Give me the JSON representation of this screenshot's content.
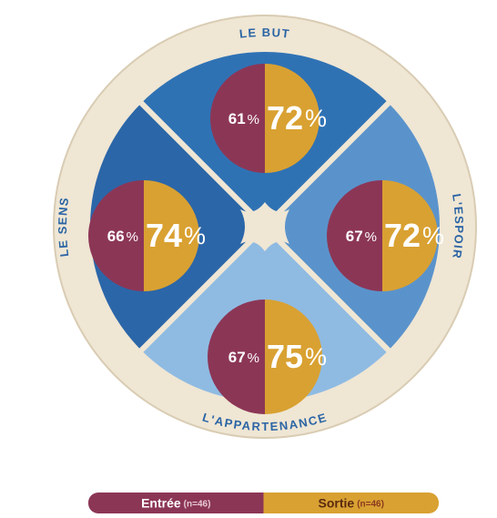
{
  "chart_data": {
    "type": "split-circle",
    "categories": [
      "LE BUT",
      "L'ESPOIR",
      "L'APPARTENANCE",
      "LE SENS"
    ],
    "unit": "%",
    "sample_label": "(n=46)",
    "series": [
      {
        "name": "Entrée",
        "color": "#8c3656",
        "values": [
          61,
          67,
          67,
          66
        ]
      },
      {
        "name": "Sortie",
        "color": "#d9a132",
        "values": [
          72,
          72,
          75,
          74
        ]
      }
    ]
  }
}
